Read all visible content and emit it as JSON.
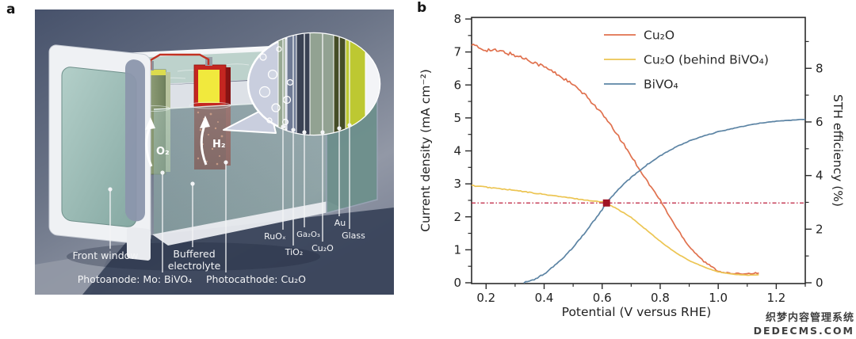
{
  "panel_a": {
    "letter": "a",
    "labels": {
      "front_window": "Front window",
      "buffered_electrolyte": [
        "Buffered",
        "electrolyte"
      ],
      "photoanode": "Photoanode: Mo: BiVO₄",
      "photocathode": "Photocathode: Cu₂O",
      "oxygen": "O₂",
      "hydrogen": "H₂",
      "layers": [
        "RuOₓ",
        "TiO₂",
        "Ga₂O₃",
        "Cu₂O",
        "Au",
        "Glass"
      ]
    },
    "colors": {
      "photoanode_plate": "#8a9a74",
      "photocathode_plate": "#c42620",
      "electrolyte": "#a9c4be",
      "wire": "#c23122",
      "tank_white": "#eff1f4",
      "background_top": "#47526b",
      "background_bottom": "#8d93a2",
      "inset_bubble_fill": "#c9cede",
      "inset_stripes": [
        "#97a893",
        "#6f7b95",
        "#3a4254",
        "#92a292",
        "#454d27",
        "#bdc832",
        "#f3f4f7"
      ]
    }
  },
  "panel_b": {
    "letter": "b"
  },
  "chart_data": {
    "type": "line",
    "xlabel": "Potential (V versus RHE)",
    "ylabel": "Current density (mA cm⁻²)",
    "y2label": "STH efficiency (%)",
    "x_range": [
      0.15,
      1.3
    ],
    "y_range": [
      0,
      8
    ],
    "y2_range": [
      0,
      9.84
    ],
    "y2_relation": "STH(%) = 1.23 x J(mA cm-2)",
    "grid": false,
    "legend_position": "top-center",
    "x_ticks": {
      "major": [
        0.2,
        0.4,
        0.6,
        0.8,
        1.0,
        1.2
      ],
      "major_labels": [
        "0.2",
        "0.4",
        "0.6",
        "0.8",
        "1.0",
        "1.2"
      ],
      "minor": [
        0.3,
        0.5,
        0.7,
        0.9,
        1.1,
        1.3
      ]
    },
    "y_ticks": {
      "major": [
        0,
        1,
        2,
        3,
        4,
        5,
        6,
        7,
        8
      ],
      "major_labels": [
        "0",
        "1",
        "2",
        "3",
        "4",
        "5",
        "6",
        "7",
        "8"
      ],
      "minor": [
        0.5,
        1.5,
        2.5,
        3.5,
        4.5,
        5.5,
        6.5,
        7.5
      ]
    },
    "y2_ticks": {
      "major": [
        0,
        2,
        4,
        6,
        8
      ],
      "major_labels": [
        "0",
        "2",
        "4",
        "6",
        "8"
      ],
      "minor": [
        1,
        3,
        5,
        7,
        9
      ]
    },
    "series": [
      {
        "name": "Cu₂O",
        "color": "#e0714e",
        "noise": 0.05,
        "points": [
          [
            0.15,
            7.22
          ],
          [
            0.18,
            7.1
          ],
          [
            0.22,
            7.05
          ],
          [
            0.26,
            7.0
          ],
          [
            0.3,
            6.9
          ],
          [
            0.35,
            6.75
          ],
          [
            0.4,
            6.55
          ],
          [
            0.45,
            6.3
          ],
          [
            0.5,
            6.0
          ],
          [
            0.55,
            5.62
          ],
          [
            0.6,
            5.12
          ],
          [
            0.65,
            4.52
          ],
          [
            0.7,
            3.85
          ],
          [
            0.75,
            3.15
          ],
          [
            0.8,
            2.5
          ],
          [
            0.85,
            1.75
          ],
          [
            0.9,
            1.1
          ],
          [
            0.95,
            0.65
          ],
          [
            1.0,
            0.35
          ],
          [
            1.05,
            0.27
          ],
          [
            1.1,
            0.28
          ],
          [
            1.14,
            0.3
          ]
        ]
      },
      {
        "name": "Cu₂O (behind BiVO₄)",
        "color": "#ecc553",
        "noise": 0.012,
        "points": [
          [
            0.15,
            2.95
          ],
          [
            0.2,
            2.9
          ],
          [
            0.25,
            2.85
          ],
          [
            0.3,
            2.8
          ],
          [
            0.35,
            2.74
          ],
          [
            0.4,
            2.68
          ],
          [
            0.45,
            2.62
          ],
          [
            0.5,
            2.56
          ],
          [
            0.55,
            2.5
          ],
          [
            0.6,
            2.45
          ],
          [
            0.615,
            2.42
          ],
          [
            0.65,
            2.25
          ],
          [
            0.7,
            1.98
          ],
          [
            0.75,
            1.62
          ],
          [
            0.8,
            1.26
          ],
          [
            0.85,
            0.93
          ],
          [
            0.9,
            0.67
          ],
          [
            0.95,
            0.48
          ],
          [
            1.0,
            0.33
          ],
          [
            1.05,
            0.26
          ],
          [
            1.1,
            0.23
          ],
          [
            1.14,
            0.24
          ]
        ]
      },
      {
        "name": "BiVO₄",
        "color": "#5c84a4",
        "noise": 0.02,
        "points": [
          [
            0.33,
            0.0
          ],
          [
            0.36,
            0.08
          ],
          [
            0.4,
            0.26
          ],
          [
            0.45,
            0.62
          ],
          [
            0.5,
            1.08
          ],
          [
            0.55,
            1.62
          ],
          [
            0.6,
            2.22
          ],
          [
            0.615,
            2.42
          ],
          [
            0.65,
            2.78
          ],
          [
            0.7,
            3.2
          ],
          [
            0.75,
            3.55
          ],
          [
            0.8,
            3.85
          ],
          [
            0.85,
            4.1
          ],
          [
            0.9,
            4.3
          ],
          [
            0.95,
            4.45
          ],
          [
            1.0,
            4.58
          ],
          [
            1.05,
            4.68
          ],
          [
            1.1,
            4.77
          ],
          [
            1.15,
            4.85
          ],
          [
            1.2,
            4.9
          ],
          [
            1.25,
            4.93
          ],
          [
            1.3,
            4.96
          ]
        ]
      }
    ],
    "reference_line": {
      "y": 2.42,
      "sth_percent": 3,
      "color": "#bf1e3c",
      "style": "dash-dot"
    },
    "operating_point": {
      "x": 0.615,
      "y": 2.42,
      "color": "#a01325",
      "shape": "square"
    }
  },
  "watermark": {
    "line1": "织梦内容管理系统",
    "line2": "DEDECMS.COM"
  }
}
